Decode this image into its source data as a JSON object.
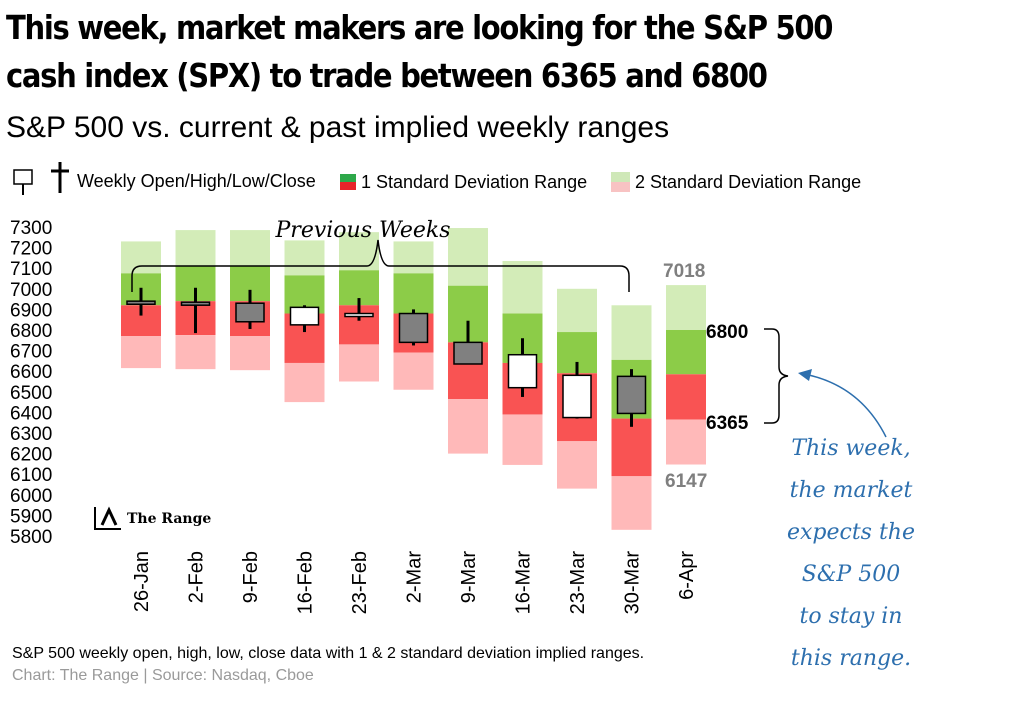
{
  "headline": {
    "line1": "This week, market makers are looking for the S&P 500",
    "line2": "cash index (SPX) to trade between  6365 and 6800"
  },
  "subtitle": "S&P 500 vs. current & past implied weekly ranges",
  "legend": {
    "ohlc_label": "Weekly Open/High/Low/Close",
    "one_sd_label": "1 Standard Deviation Range",
    "two_sd_label": "2 Standard Deviation Range"
  },
  "brand": "The Range",
  "annotation": "Previous Weeks",
  "range_labels": {
    "two_sd_high": "7018",
    "one_sd_high": "6800",
    "one_sd_low": "6365",
    "two_sd_low": "6147"
  },
  "callout_lines": [
    "This week,",
    "the market",
    "expects the",
    "S&P 500",
    "to stay in",
    "this range."
  ],
  "footnote": "S&P 500 weekly open, high, low, close data with 1 & 2 standard deviation implied ranges.",
  "credit": "Chart: The Range | Source: Nasdaq, Cboe",
  "colors": {
    "green_1sd": "#8ccc48",
    "red_1sd": "#f95353",
    "green_2sd": "#d3ecb8",
    "red_2sd": "#ffb9b9",
    "candle_down": "#808080",
    "candle_up": "#ffffff",
    "callout": "#2d6fae",
    "label_grey": "#7f7f7f"
  },
  "chart_data": {
    "type": "candlestick-range",
    "title": "S&P 500 vs. current & past implied weekly ranges",
    "ylim": [
      5800,
      7300
    ],
    "y_ticks": [
      7300,
      7200,
      7100,
      7000,
      6900,
      6800,
      6700,
      6600,
      6500,
      6400,
      6300,
      6200,
      6100,
      6000,
      5900,
      5800
    ],
    "categories": [
      "26-Jan",
      "2-Feb",
      "9-Feb",
      "16-Feb",
      "23-Feb",
      "2-Mar",
      "9-Mar",
      "16-Mar",
      "23-Mar",
      "30-Mar",
      "6-Apr"
    ],
    "series": [
      {
        "name": "2 SD high",
        "values": [
          7230,
          7285,
          7285,
          7235,
          7275,
          7230,
          7295,
          7135,
          7000,
          6920,
          7018
        ]
      },
      {
        "name": "1 SD high",
        "values": [
          7075,
          7110,
          7110,
          7065,
          7090,
          7075,
          7015,
          6880,
          6790,
          6655,
          6800
        ]
      },
      {
        "name": "Center",
        "values": [
          6920,
          6940,
          6940,
          6880,
          6920,
          6880,
          6740,
          6640,
          6590,
          6370,
          6585
        ]
      },
      {
        "name": "1 SD low",
        "values": [
          6770,
          6775,
          6770,
          6640,
          6730,
          6690,
          6465,
          6390,
          6260,
          6090,
          6365
        ]
      },
      {
        "name": "2 SD low",
        "values": [
          6615,
          6610,
          6605,
          6450,
          6550,
          6510,
          6200,
          6145,
          6030,
          5830,
          6147
        ]
      },
      {
        "name": "Open",
        "values": [
          6940,
          6935,
          6930,
          6825,
          6875,
          6880,
          6740,
          6520,
          6375,
          6575,
          null
        ]
      },
      {
        "name": "High",
        "values": [
          7005,
          7005,
          6995,
          6920,
          6955,
          6900,
          6845,
          6760,
          6645,
          6610,
          null
        ]
      },
      {
        "name": "Low",
        "values": [
          6870,
          6785,
          6805,
          6790,
          6845,
          6725,
          6640,
          6475,
          6370,
          6330,
          null
        ]
      },
      {
        "name": "Close",
        "values": [
          6925,
          6925,
          6840,
          6910,
          6880,
          6740,
          6635,
          6680,
          6580,
          6395,
          null
        ]
      }
    ]
  }
}
